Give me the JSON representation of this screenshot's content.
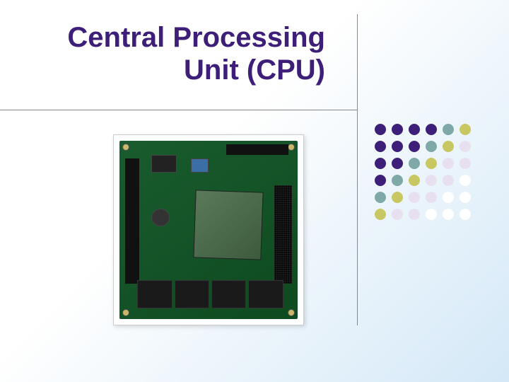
{
  "title": {
    "line1": "Central Processing",
    "line2": "Unit (CPU)",
    "color": "#3d1e78",
    "fontsize": 40
  },
  "lines": {
    "color": "#888888"
  },
  "dot_grid": {
    "rows": 6,
    "cols": 6,
    "dot_size": 16,
    "gap": 8,
    "colors": [
      [
        "#3d1e78",
        "#3d1e78",
        "#3d1e78",
        "#3d1e78",
        "#7fa8a8",
        "#c9c762"
      ],
      [
        "#3d1e78",
        "#3d1e78",
        "#3d1e78",
        "#7fa8a8",
        "#c9c762",
        "#e8e0f0"
      ],
      [
        "#3d1e78",
        "#3d1e78",
        "#7fa8a8",
        "#c9c762",
        "#e8e0f0",
        "#e8e0f0"
      ],
      [
        "#3d1e78",
        "#7fa8a8",
        "#c9c762",
        "#e8e0f0",
        "#e8e0f0",
        "#ffffff"
      ],
      [
        "#7fa8a8",
        "#c9c762",
        "#e8e0f0",
        "#e8e0f0",
        "#ffffff",
        "#ffffff"
      ],
      [
        "#c9c762",
        "#e8e0f0",
        "#e8e0f0",
        "#ffffff",
        "#ffffff",
        "#ffffff"
      ]
    ]
  },
  "image": {
    "description": "cpu-board-photo",
    "board_color": "#0d4a1f",
    "chip_color": "#3d5a3d"
  },
  "background": {
    "gradient_from": "#ffffff",
    "gradient_to": "#d4e8f7"
  }
}
